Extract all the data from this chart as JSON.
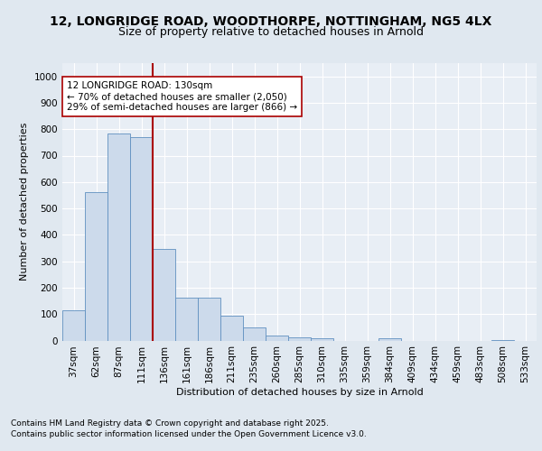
{
  "title_line1": "12, LONGRIDGE ROAD, WOODTHORPE, NOTTINGHAM, NG5 4LX",
  "title_line2": "Size of property relative to detached houses in Arnold",
  "xlabel": "Distribution of detached houses by size in Arnold",
  "ylabel": "Number of detached properties",
  "categories": [
    "37sqm",
    "62sqm",
    "87sqm",
    "111sqm",
    "136sqm",
    "161sqm",
    "186sqm",
    "211sqm",
    "235sqm",
    "260sqm",
    "285sqm",
    "310sqm",
    "335sqm",
    "359sqm",
    "384sqm",
    "409sqm",
    "434sqm",
    "459sqm",
    "483sqm",
    "508sqm",
    "533sqm"
  ],
  "values": [
    113,
    562,
    785,
    770,
    345,
    163,
    163,
    95,
    50,
    20,
    13,
    10,
    0,
    0,
    10,
    0,
    0,
    0,
    0,
    3,
    0
  ],
  "bar_color": "#ccdaeb",
  "bar_edge_color": "#6090c0",
  "vline_position": 3.5,
  "vline_color": "#aa0000",
  "annotation_text": "12 LONGRIDGE ROAD: 130sqm\n← 70% of detached houses are smaller (2,050)\n29% of semi-detached houses are larger (866) →",
  "annotation_box_facecolor": "#ffffff",
  "annotation_box_edgecolor": "#aa0000",
  "ylim": [
    0,
    1050
  ],
  "yticks": [
    0,
    100,
    200,
    300,
    400,
    500,
    600,
    700,
    800,
    900,
    1000
  ],
  "background_color": "#e0e8f0",
  "plot_bg_color": "#e8eef5",
  "grid_color": "#ffffff",
  "footer_line1": "Contains HM Land Registry data © Crown copyright and database right 2025.",
  "footer_line2": "Contains public sector information licensed under the Open Government Licence v3.0.",
  "title_fontsize": 10,
  "subtitle_fontsize": 9,
  "axis_label_fontsize": 8,
  "tick_fontsize": 7.5,
  "annotation_fontsize": 7.5,
  "footer_fontsize": 6.5
}
